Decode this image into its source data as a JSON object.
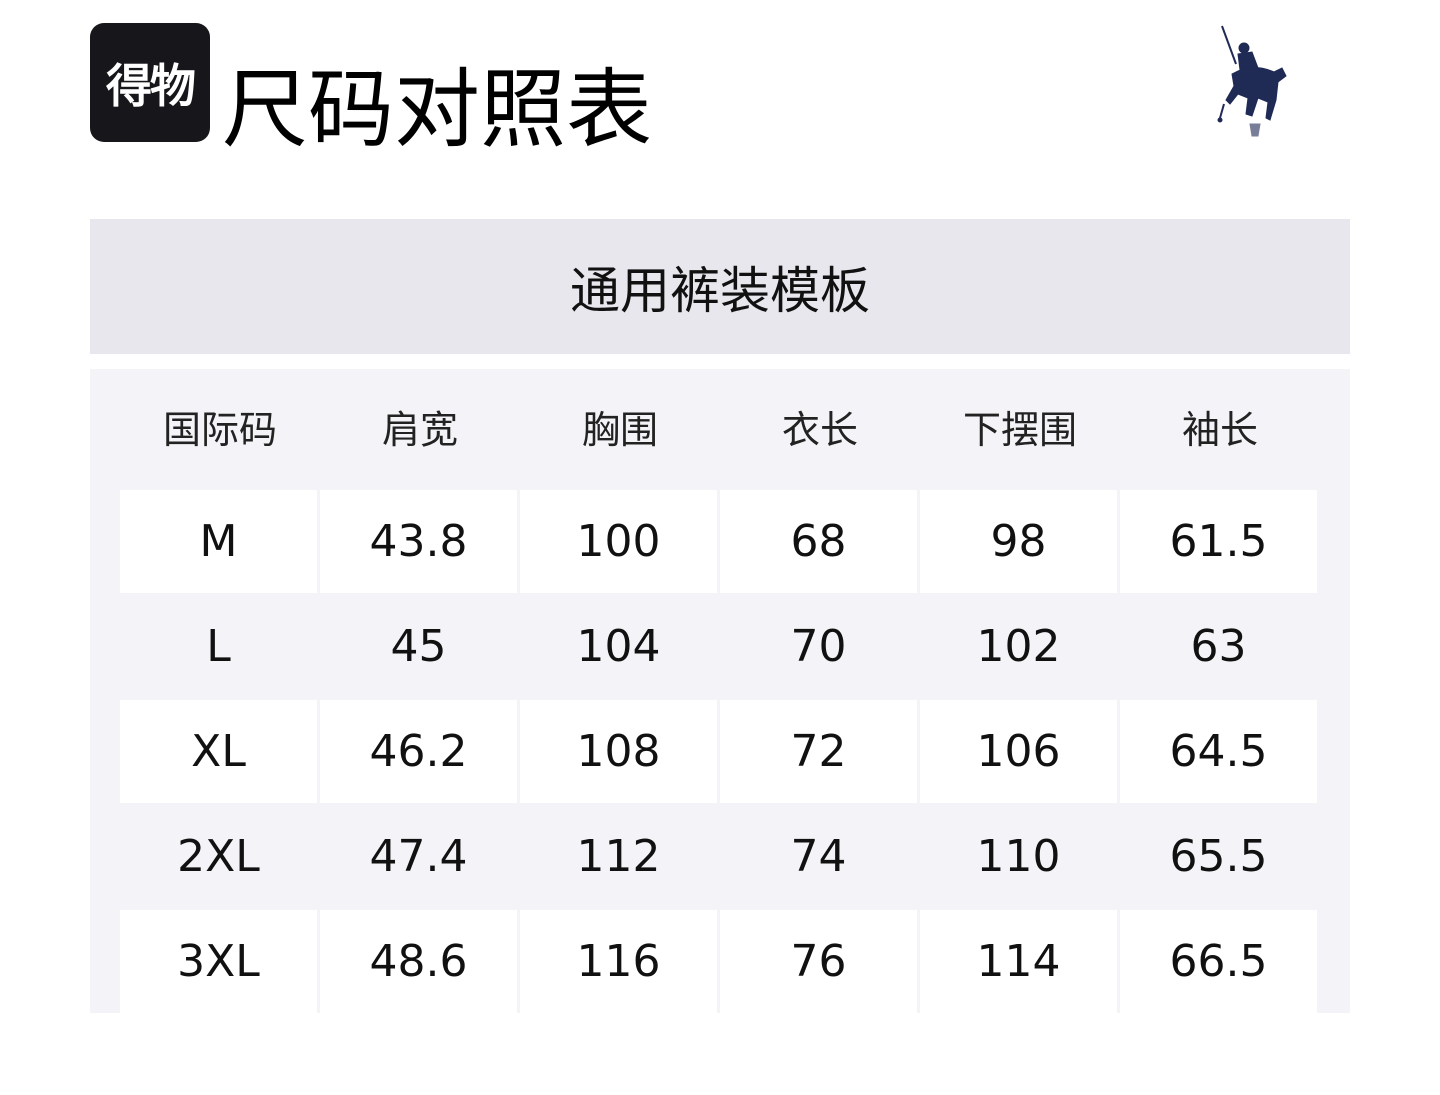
{
  "brand": {
    "logo_text": "得物"
  },
  "page_title": "尺码对照表",
  "logo": {
    "name": "polo-player-logo",
    "color": "#1f2a55"
  },
  "template_title": "通用裤装模板",
  "table": {
    "headers": [
      "国际码",
      "肩宽",
      "胸围",
      "衣长",
      "下摆围",
      "袖长"
    ],
    "rows": [
      [
        "M",
        "43.8",
        "100",
        "68",
        "98",
        "61.5"
      ],
      [
        "L",
        "45",
        "104",
        "70",
        "102",
        "63"
      ],
      [
        "XL",
        "46.2",
        "108",
        "72",
        "106",
        "64.5"
      ],
      [
        "2XL",
        "47.4",
        "112",
        "74",
        "110",
        "65.5"
      ],
      [
        "3XL",
        "48.6",
        "116",
        "76",
        "114",
        "66.5"
      ]
    ]
  },
  "colors": {
    "band": "#e7e7ed",
    "panel": "#f4f4f8",
    "brand_bg": "#17171b"
  }
}
